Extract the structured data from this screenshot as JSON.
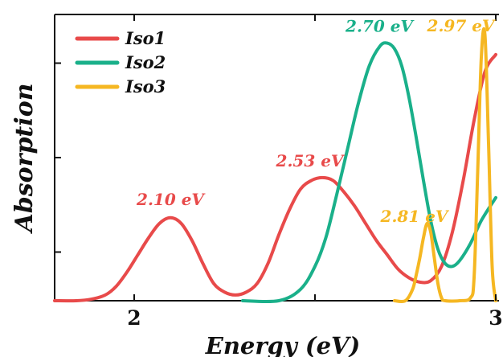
{
  "chart_data": {
    "type": "line",
    "title": "",
    "xlabel": "Energy (eV)",
    "ylabel": "Absorption",
    "xlim": [
      1.78,
      3.0
    ],
    "ylim": [
      0,
      1.0
    ],
    "x_ticks": [
      {
        "value": 2,
        "label": "2"
      },
      {
        "value": 2.5,
        "label": ""
      },
      {
        "value": 3,
        "label": "3"
      }
    ],
    "y_ticks_shown_labels": false,
    "legend_position": "top-left",
    "series": [
      {
        "name": "Iso1",
        "color": "#e84a4a",
        "x": [
          1.78,
          1.84,
          1.88,
          1.92,
          1.95,
          1.98,
          2.01,
          2.04,
          2.07,
          2.1,
          2.13,
          2.16,
          2.19,
          2.22,
          2.25,
          2.28,
          2.31,
          2.34,
          2.37,
          2.4,
          2.43,
          2.46,
          2.49,
          2.52,
          2.55,
          2.58,
          2.61,
          2.64,
          2.67,
          2.7,
          2.73,
          2.76,
          2.79,
          2.82,
          2.85,
          2.88,
          2.91,
          2.94,
          2.97,
          3.0
        ],
        "y": [
          0.0,
          0.0,
          0.005,
          0.02,
          0.05,
          0.1,
          0.16,
          0.22,
          0.27,
          0.29,
          0.27,
          0.21,
          0.13,
          0.06,
          0.03,
          0.02,
          0.03,
          0.06,
          0.13,
          0.23,
          0.32,
          0.39,
          0.42,
          0.43,
          0.42,
          0.38,
          0.33,
          0.27,
          0.21,
          0.16,
          0.11,
          0.08,
          0.065,
          0.07,
          0.12,
          0.24,
          0.42,
          0.63,
          0.8,
          0.86
        ]
      },
      {
        "name": "Iso2",
        "color": "#1ab08a",
        "x": [
          2.3,
          2.4,
          2.46,
          2.5,
          2.53,
          2.56,
          2.59,
          2.62,
          2.65,
          2.68,
          2.7,
          2.72,
          2.74,
          2.76,
          2.78,
          2.8,
          2.82,
          2.84,
          2.86,
          2.88,
          2.9,
          2.93,
          2.96,
          3.0
        ],
        "y": [
          0.0,
          0.0,
          0.04,
          0.12,
          0.22,
          0.37,
          0.53,
          0.69,
          0.82,
          0.89,
          0.9,
          0.88,
          0.82,
          0.71,
          0.57,
          0.42,
          0.28,
          0.18,
          0.13,
          0.12,
          0.14,
          0.2,
          0.28,
          0.36
        ]
      },
      {
        "name": "Iso3",
        "color": "#f5b722",
        "x": [
          2.72,
          2.75,
          2.77,
          2.78,
          2.79,
          2.8,
          2.81,
          2.82,
          2.83,
          2.84,
          2.85,
          2.86,
          2.9,
          2.93,
          2.94,
          2.95,
          2.96,
          2.97,
          2.98,
          2.99,
          3.0
        ],
        "y": [
          0.0,
          0.0,
          0.04,
          0.09,
          0.15,
          0.22,
          0.27,
          0.24,
          0.15,
          0.06,
          0.01,
          0.0,
          0.0,
          0.01,
          0.08,
          0.45,
          0.85,
          0.93,
          0.55,
          0.12,
          0.0
        ]
      }
    ],
    "annotations": [
      {
        "text": "2.10 eV",
        "series": "Iso1",
        "x": 2.1,
        "y": 0.29,
        "color": "#e84a4a"
      },
      {
        "text": "2.53 eV",
        "series": "Iso1",
        "x": 2.53,
        "y": 0.43,
        "color": "#e84a4a"
      },
      {
        "text": "2.70 eV",
        "series": "Iso2",
        "x": 2.7,
        "y": 0.9,
        "color": "#1ab08a"
      },
      {
        "text": "2.81 eV",
        "series": "Iso3",
        "x": 2.81,
        "y": 0.27,
        "color": "#f5b722"
      },
      {
        "text": "2.97 eV",
        "series": "Iso3",
        "x": 2.97,
        "y": 0.93,
        "color": "#f5b722"
      }
    ]
  }
}
